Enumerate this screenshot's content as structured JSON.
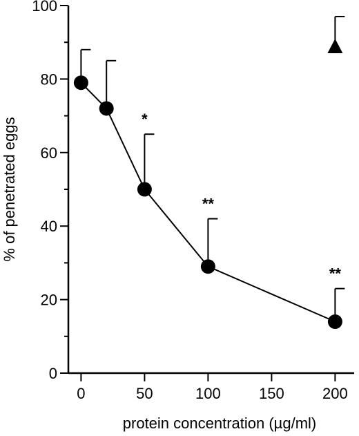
{
  "chart_data": {
    "type": "scatter",
    "xlabel": "protein concentration (µg/ml)",
    "ylabel": "% of penetrated eggs",
    "xlim": [
      -10,
      215
    ],
    "ylim": [
      0,
      100
    ],
    "x_ticks": [
      0,
      50,
      100,
      150,
      200
    ],
    "x_tick_labels": [
      "0",
      "50",
      "100",
      "150",
      "200"
    ],
    "y_major_ticks": [
      0,
      20,
      40,
      60,
      80,
      100
    ],
    "y_tick_labels": [
      "0",
      "20",
      "40",
      "60",
      "80",
      "100"
    ],
    "grid": false,
    "series": [
      {
        "marker": "circle",
        "connected": true,
        "points": [
          {
            "x": 0,
            "y": 79,
            "err": 9,
            "sig": ""
          },
          {
            "x": 20,
            "y": 72,
            "err": 13,
            "sig": ""
          },
          {
            "x": 50,
            "y": 50,
            "err": 15,
            "sig": "*"
          },
          {
            "x": 100,
            "y": 29,
            "err": 13,
            "sig": "**"
          },
          {
            "x": 200,
            "y": 14,
            "err": 9,
            "sig": "**"
          }
        ]
      },
      {
        "marker": "triangle",
        "connected": false,
        "points": [
          {
            "x": 200,
            "y": 89,
            "err": 8,
            "sig": ""
          }
        ]
      }
    ]
  }
}
